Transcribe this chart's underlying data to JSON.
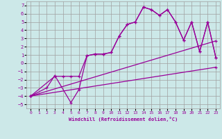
{
  "xlabel": "Windchill (Refroidissement éolien,°C)",
  "bg_color": "#cce8e8",
  "grid_color": "#a0a0a0",
  "line_color": "#990099",
  "xlim": [
    -0.5,
    23.5
  ],
  "ylim": [
    -5.5,
    7.5
  ],
  "xticks": [
    0,
    1,
    2,
    3,
    4,
    5,
    6,
    7,
    8,
    9,
    10,
    11,
    12,
    13,
    14,
    15,
    16,
    17,
    18,
    19,
    20,
    21,
    22,
    23
  ],
  "yticks": [
    -5,
    -4,
    -3,
    -2,
    -1,
    0,
    1,
    2,
    3,
    4,
    5,
    6,
    7
  ],
  "line1_x": [
    0,
    2,
    3,
    5,
    6,
    7,
    8,
    9,
    10,
    11,
    12,
    13,
    14,
    15,
    16,
    17,
    18,
    19,
    20,
    21,
    22,
    23
  ],
  "line1_y": [
    -4,
    -3,
    -1.5,
    -4.8,
    -3.2,
    0.9,
    1.1,
    1.1,
    1.3,
    3.3,
    4.7,
    5.0,
    6.8,
    6.5,
    5.8,
    6.5,
    5.0,
    2.8,
    5.0,
    1.4,
    5.0,
    0.7
  ],
  "line2_x": [
    0,
    3,
    4,
    5,
    6,
    7,
    8,
    9,
    10,
    11,
    12,
    13,
    14,
    15,
    16,
    17,
    18,
    19,
    20,
    21,
    22,
    23
  ],
  "line2_y": [
    -4,
    -1.6,
    -1.6,
    -1.6,
    -1.6,
    0.9,
    1.1,
    1.1,
    1.3,
    3.3,
    4.7,
    5.0,
    6.8,
    6.5,
    5.8,
    6.5,
    5.0,
    2.8,
    5.0,
    1.4,
    5.0,
    0.7
  ],
  "line3_x": [
    0,
    23
  ],
  "line3_y": [
    -4,
    -0.5
  ],
  "line4_x": [
    0,
    23
  ],
  "line4_y": [
    -4,
    2.7
  ]
}
